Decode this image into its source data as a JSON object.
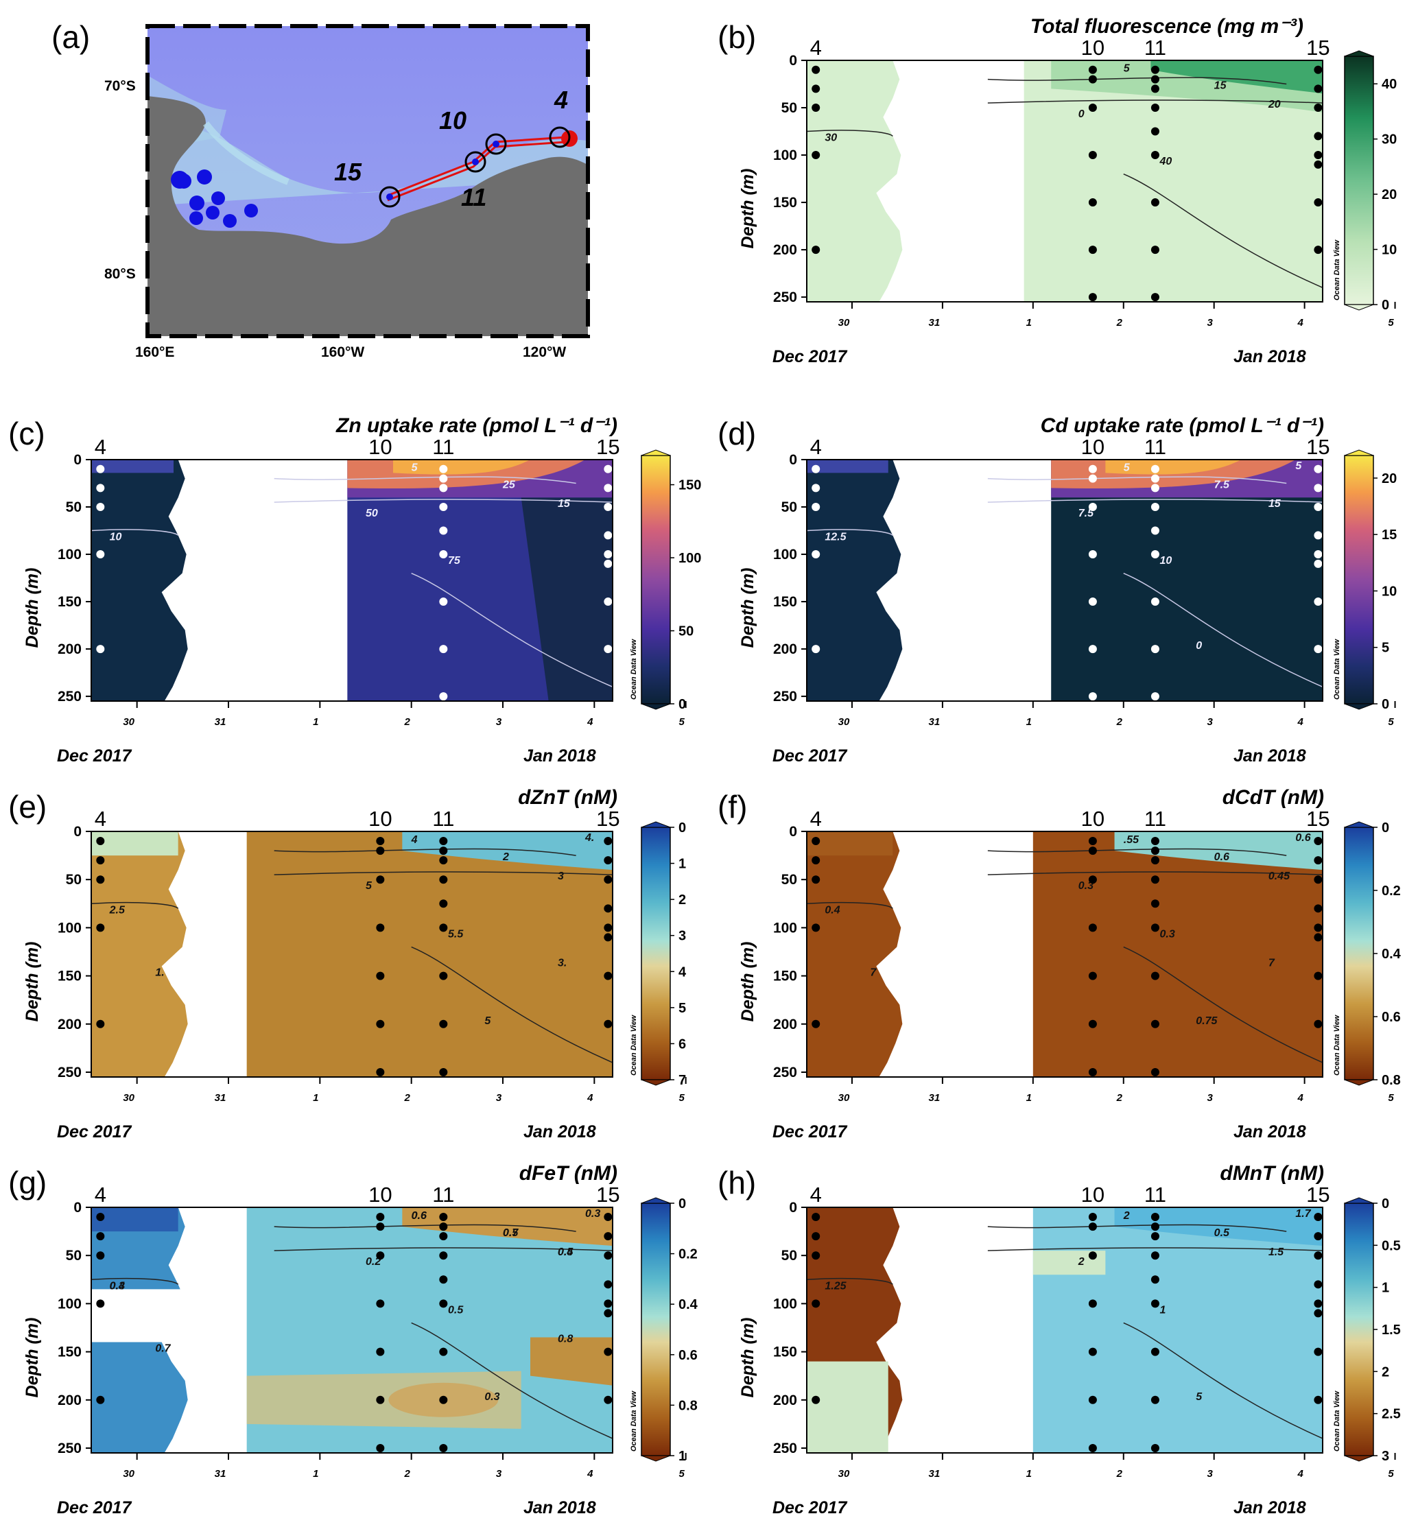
{
  "map": {
    "label": "(a)",
    "lat_labels": [
      "70°S",
      "80°S"
    ],
    "lon_labels": [
      "160°E",
      "160°W",
      "120°W"
    ],
    "station_labels": [
      "4",
      "10",
      "11",
      "15"
    ]
  },
  "common": {
    "date_ticks": [
      "30",
      "31",
      "1",
      "2",
      "3",
      "4",
      "5"
    ],
    "depth_ticks": [
      "0",
      "50",
      "100",
      "150",
      "200",
      "250"
    ],
    "xlabel_left": "Dec 2017",
    "xlabel_right": "Jan 2018",
    "ylabel": "Depth (m)",
    "stations": [
      "4",
      "10",
      "11",
      "15"
    ],
    "odv": "Ocean Data View"
  },
  "panels": [
    {
      "id": "b",
      "label": "(b)",
      "title": "Total fluorescence (mg m⁻³)",
      "palette": "green",
      "cbar": {
        "ticks": [
          "0",
          "10",
          "20",
          "30",
          "40"
        ],
        "min": 0,
        "max": 45
      },
      "contours": [
        "5",
        "15",
        "20",
        "30",
        "40",
        "0"
      ]
    },
    {
      "id": "c",
      "label": "(c)",
      "title": "Zn uptake rate (pmol L⁻¹ d⁻¹)",
      "palette": "plasma",
      "cbar": {
        "ticks": [
          "0",
          "50",
          "100",
          "150"
        ],
        "min": 0,
        "max": 170
      },
      "contours": [
        "5",
        "25",
        "15",
        "10",
        "75",
        "50"
      ]
    },
    {
      "id": "d",
      "label": "(d)",
      "title": "Cd uptake rate (pmol L⁻¹ d⁻¹)",
      "palette": "plasma",
      "cbar": {
        "ticks": [
          "0",
          "5",
          "10",
          "15",
          "20"
        ],
        "min": 0,
        "max": 22
      },
      "contours": [
        "5",
        "7.5",
        "15",
        "12.5",
        "10",
        "7.5",
        "5",
        "0"
      ]
    },
    {
      "id": "e",
      "label": "(e)",
      "title": "dZnT (nM)",
      "palette": "brbg",
      "cbar": {
        "ticks": [
          "0",
          "1",
          "2",
          "3",
          "4",
          "5",
          "6",
          "7"
        ],
        "min": 0,
        "max": 7
      },
      "contours": [
        "4",
        "2",
        "3",
        "2.5",
        "5.5",
        "5",
        "4.",
        "5",
        "1.",
        "3."
      ]
    },
    {
      "id": "f",
      "label": "(f)",
      "title": "dCdT (nM)",
      "palette": "brbg",
      "cbar": {
        "ticks": [
          "0",
          "0.2",
          "0.4",
          "0.6",
          "0.8"
        ],
        "min": 0,
        "max": 0.8
      },
      "contours": [
        ".55",
        "0.6",
        "0.45",
        "0.4",
        "0.3",
        "0.3",
        "0.6",
        "0.75",
        "7",
        "7"
      ]
    },
    {
      "id": "g",
      "label": "(g)",
      "title": "dFeT (nM)",
      "palette": "brbg",
      "cbar": {
        "ticks": [
          "0",
          "0.2",
          "0.4",
          "0.6",
          "0.8",
          "1"
        ],
        "min": 0,
        "max": 1
      },
      "contours": [
        "0.6",
        "0.5",
        "0.4",
        "0.4",
        "0.5",
        "0.2",
        "0.3",
        "0.3",
        "0.7",
        "0.8",
        "0.6",
        "0.7",
        "0.5",
        "0.3"
      ]
    },
    {
      "id": "h",
      "label": "(h)",
      "title": "dMnT (nM)",
      "palette": "brbg",
      "cbar": {
        "ticks": [
          "0",
          "0.5",
          "1",
          "1.5",
          "2",
          "2.5",
          "3"
        ],
        "min": 0,
        "max": 3
      },
      "contours": [
        "2",
        "0.5",
        "1.5",
        "1.25",
        "1",
        "2",
        "1.7",
        "5"
      ]
    }
  ],
  "chart_data": {
    "type": "heatmap",
    "description_axes": {
      "x": "Date (30 Dec 2017 - 5 Jan 2018)",
      "y": "Depth (m)",
      "ylim": [
        0,
        255
      ]
    },
    "station_times": {
      "4": 29.6,
      "10": 32.66,
      "11": 33.35,
      "15": 35.15
    },
    "sample_depths_m": [
      10,
      30,
      50,
      75,
      100,
      150,
      200,
      250
    ],
    "series": [
      {
        "name": "Total fluorescence",
        "units": "mg m-3",
        "surface_max": 40
      },
      {
        "name": "Zn uptake rate",
        "units": "pmol L-1 d-1",
        "surface_max": 170
      },
      {
        "name": "Cd uptake rate",
        "units": "pmol L-1 d-1",
        "surface_max": 22
      },
      {
        "name": "dZnT",
        "units": "nM",
        "range": [
          1,
          6
        ]
      },
      {
        "name": "dCdT",
        "units": "nM",
        "range": [
          0.3,
          0.75
        ]
      },
      {
        "name": "dFeT",
        "units": "nM",
        "range": [
          0.2,
          0.9
        ]
      },
      {
        "name": "dMnT",
        "units": "nM",
        "range": [
          0.5,
          2.5
        ]
      }
    ]
  }
}
